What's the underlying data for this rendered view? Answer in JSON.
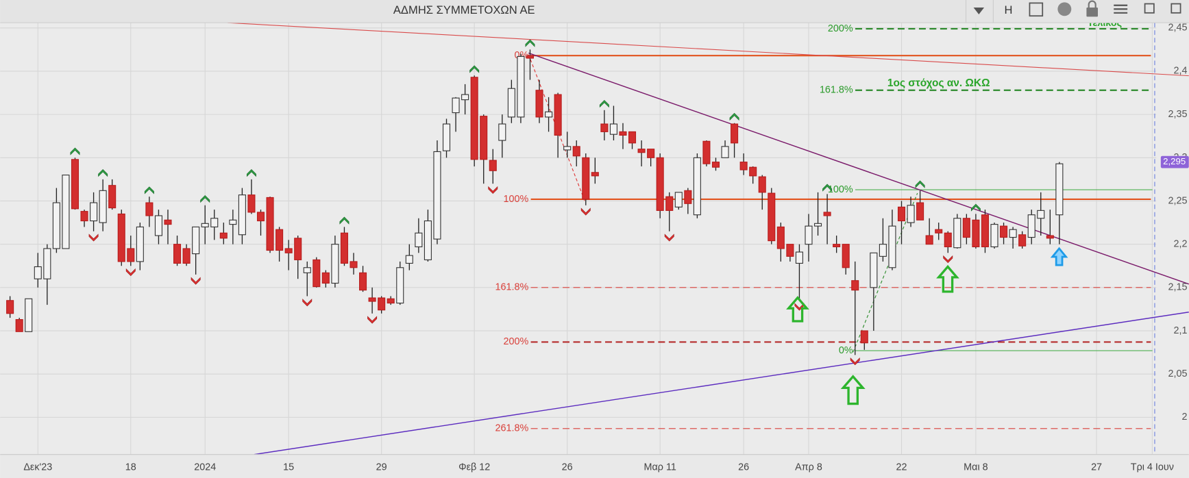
{
  "chart_data": {
    "type": "candlestick",
    "title": "ΑΔΜΗΣ ΣΥΜΜΕΤΟΧΩΝ ΑΕ",
    "toolbar_button": "H",
    "categories": [
      null,
      null,
      null,
      "Δεκ'23",
      null,
      null,
      null,
      null,
      null,
      null,
      null,
      null,
      null,
      "18",
      null,
      null,
      null,
      null,
      null,
      null,
      null,
      "2024",
      null,
      null,
      null,
      null,
      null,
      null,
      null,
      null,
      "15",
      null,
      null,
      null,
      null,
      null,
      null,
      null,
      null,
      null,
      "29",
      null,
      null,
      null,
      null,
      null,
      null,
      null,
      null,
      null,
      "Φεβ 12",
      null,
      null,
      null,
      null,
      null,
      null,
      null,
      null,
      null,
      "26",
      null,
      null,
      null,
      null,
      null,
      null,
      null,
      null,
      null,
      "Μαρ 11",
      null,
      null,
      null,
      null,
      null,
      null,
      null,
      null,
      "26",
      null,
      null,
      null,
      null,
      null,
      null,
      "Απρ 8",
      null,
      null,
      null,
      null,
      null,
      null,
      null,
      null,
      null,
      "22",
      null,
      null,
      null,
      null,
      null,
      null,
      null,
      "Μαι 8",
      null,
      null,
      null,
      null,
      null,
      null,
      null,
      null,
      null,
      null,
      null,
      null,
      "27",
      null,
      null,
      null,
      null,
      null,
      "Τρι 4 Ιουν"
    ],
    "open": [
      2.135,
      2.113,
      2.099,
      2.16,
      2.16,
      2.195,
      2.195,
      2.298,
      2.238,
      2.227,
      2.225,
      2.268,
      2.235,
      2.195,
      2.18,
      2.248,
      2.21,
      2.228,
      2.2,
      2.195,
      2.189,
      2.22,
      2.22,
      2.213,
      2.223,
      2.211,
      2.257,
      2.237,
      2.254,
      2.217,
      2.195,
      2.207,
      2.167,
      2.182,
      2.167,
      2.155,
      2.213,
      2.18,
      2.167,
      2.138,
      2.138,
      2.137,
      2.132,
      2.178,
      2.197,
      2.182,
      2.206,
      2.308,
      2.352,
      2.367,
      2.393,
      2.348,
      2.297,
      2.32,
      2.347,
      2.347,
      2.418,
      2.378,
      2.347,
      2.373,
      2.309,
      2.313,
      2.3,
      2.283,
      2.339,
      2.327,
      2.33,
      2.33,
      2.31,
      2.31,
      2.3,
      2.255,
      2.243,
      2.262,
      2.234,
      2.319,
      2.295,
      2.3,
      2.339,
      2.295,
      2.289,
      2.278,
      2.259,
      2.22,
      2.2,
      2.178,
      2.2,
      2.221,
      2.237,
      2.2,
      2.2,
      2.158,
      2.1,
      2.15,
      2.186,
      2.173,
      2.243,
      2.225,
      2.248,
      2.21,
      2.217,
      2.213,
      2.196,
      2.23,
      2.228,
      2.234,
      2.197,
      2.221,
      2.208,
      2.211,
      2.208,
      2.23,
      2.21,
      2.234,
      null,
      null,
      null,
      null,
      null,
      null,
      null,
      null,
      null,
      null
    ],
    "high": [
      2.14,
      2.115,
      2.137,
      2.19,
      2.2,
      2.265,
      2.28,
      2.3,
      2.24,
      2.26,
      2.275,
      2.275,
      2.24,
      2.21,
      2.225,
      2.255,
      2.24,
      2.24,
      2.21,
      2.2,
      2.22,
      2.245,
      2.24,
      2.225,
      2.24,
      2.265,
      2.275,
      2.24,
      2.255,
      2.22,
      2.205,
      2.21,
      2.18,
      2.185,
      2.17,
      2.21,
      2.22,
      2.19,
      2.175,
      2.15,
      2.14,
      2.14,
      2.18,
      2.2,
      2.23,
      2.24,
      2.32,
      2.345,
      2.37,
      2.385,
      2.395,
      2.35,
      2.31,
      2.35,
      2.39,
      2.42,
      2.425,
      2.39,
      2.37,
      2.375,
      2.33,
      2.32,
      2.305,
      2.3,
      2.355,
      2.36,
      2.34,
      2.33,
      2.32,
      2.31,
      2.305,
      2.26,
      2.26,
      2.265,
      2.305,
      2.32,
      2.3,
      2.32,
      2.34,
      2.305,
      2.29,
      2.28,
      2.265,
      2.225,
      2.2,
      2.2,
      2.235,
      2.26,
      2.258,
      2.21,
      2.2,
      2.18,
      2.1,
      2.19,
      2.23,
      2.24,
      2.25,
      2.255,
      2.262,
      2.23,
      2.225,
      2.215,
      2.235,
      2.235,
      2.235,
      2.24,
      2.225,
      2.225,
      2.22,
      2.215,
      2.24,
      2.26,
      2.24,
      2.295,
      null,
      null,
      null,
      null,
      null,
      null,
      null,
      null,
      null,
      null
    ],
    "low": [
      2.115,
      2.099,
      2.099,
      2.15,
      2.13,
      2.19,
      2.195,
      2.24,
      2.22,
      2.215,
      2.215,
      2.24,
      2.175,
      2.175,
      2.17,
      2.22,
      2.2,
      2.2,
      2.175,
      2.175,
      2.165,
      2.2,
      2.205,
      2.2,
      2.2,
      2.2,
      2.235,
      2.21,
      2.19,
      2.18,
      2.17,
      2.16,
      2.14,
      2.15,
      2.15,
      2.15,
      2.175,
      2.165,
      2.145,
      2.12,
      2.12,
      2.13,
      2.13,
      2.17,
      2.19,
      2.18,
      2.2,
      2.3,
      2.33,
      2.35,
      2.29,
      2.27,
      2.27,
      2.3,
      2.34,
      2.34,
      2.39,
      2.34,
      2.33,
      2.3,
      2.3,
      2.29,
      2.245,
      2.27,
      2.32,
      2.32,
      2.31,
      2.31,
      2.29,
      2.29,
      2.23,
      2.215,
      2.24,
      2.235,
      2.23,
      2.29,
      2.285,
      2.3,
      2.3,
      2.28,
      2.27,
      2.24,
      2.2,
      2.18,
      2.18,
      2.135,
      2.18,
      2.21,
      2.2,
      2.19,
      2.165,
      2.072,
      2.078,
      2.1,
      2.18,
      2.17,
      2.2,
      2.22,
      2.228,
      2.2,
      2.205,
      2.19,
      2.195,
      2.2,
      2.195,
      2.19,
      2.195,
      2.2,
      2.195,
      2.195,
      2.2,
      2.21,
      2.2,
      2.2,
      null,
      null,
      null,
      null,
      null,
      null,
      null,
      null,
      null,
      null
    ],
    "close": [
      2.12,
      2.099,
      2.137,
      2.174,
      2.195,
      2.248,
      2.28,
      2.241,
      2.227,
      2.248,
      2.262,
      2.242,
      2.18,
      2.18,
      2.22,
      2.233,
      2.233,
      2.223,
      2.178,
      2.178,
      2.22,
      2.224,
      2.23,
      2.207,
      2.228,
      2.257,
      2.237,
      2.227,
      2.193,
      2.193,
      2.19,
      2.182,
      2.173,
      2.151,
      2.155,
      2.2,
      2.178,
      2.173,
      2.147,
      2.134,
      2.124,
      2.132,
      2.173,
      2.187,
      2.213,
      2.227,
      2.307,
      2.339,
      2.369,
      2.373,
      2.298,
      2.298,
      2.285,
      2.339,
      2.38,
      2.417,
      2.415,
      2.347,
      2.353,
      2.326,
      2.313,
      2.302,
      2.252,
      2.279,
      2.33,
      2.339,
      2.326,
      2.317,
      2.306,
      2.3,
      2.239,
      2.239,
      2.26,
      2.247,
      2.3,
      2.293,
      2.289,
      2.313,
      2.317,
      2.286,
      2.279,
      2.26,
      2.204,
      2.195,
      2.186,
      2.191,
      2.221,
      2.224,
      2.233,
      2.197,
      2.173,
      2.147,
      2.086,
      2.19,
      2.2,
      2.221,
      2.227,
      2.245,
      2.228,
      2.2,
      2.213,
      2.197,
      2.23,
      2.208,
      2.197,
      2.197,
      2.223,
      2.208,
      2.217,
      2.198,
      2.234,
      2.239,
      2.207,
      2.293,
      null,
      null,
      null,
      null,
      null,
      null,
      null,
      null,
      null,
      null
    ],
    "up_color": "#f3f3f3",
    "down_color": "#d32f2f",
    "ylim": [
      1.957,
      2.456
    ],
    "yticks": [
      2,
      {
        "value": 2.05,
        "label": "2,05"
      },
      {
        "value": 2.1,
        "label": "2,1"
      },
      {
        "value": 2.15,
        "label": "2,15"
      },
      {
        "value": 2.2,
        "label": "2,2"
      },
      {
        "value": 2.25,
        "label": "2,25"
      },
      {
        "value": 2.3,
        "label": "2,3"
      },
      {
        "value": 2.35,
        "label": "2,35"
      },
      {
        "value": 2.4,
        "label": "2,4"
      },
      {
        "value": 2.45,
        "label": "2,45"
      }
    ],
    "grid": true,
    "last_price": {
      "value": 2.295,
      "label": "2,295"
    },
    "fractals_up": [
      7,
      10,
      15,
      21,
      26,
      36,
      50,
      56,
      64,
      78,
      88,
      98,
      104
    ],
    "fractals_down": [
      9,
      13,
      20,
      32,
      39,
      52,
      62,
      71,
      85,
      91,
      101
    ],
    "fibonacci_red": [
      {
        "label": "0%",
        "value": 2.418,
        "style": "solid"
      },
      {
        "label": "100%",
        "value": 2.252,
        "style": "solid"
      },
      {
        "label": "161.8%",
        "value": 2.15,
        "style": "dashed"
      },
      {
        "label": "200%",
        "value": 2.087,
        "style": "bold-dashed"
      },
      {
        "label": "261.8%",
        "value": 1.987,
        "style": "dashed"
      }
    ],
    "fibonacci_green": [
      {
        "label": "200%",
        "value": 2.449,
        "style": "bold-dashed"
      },
      {
        "label": "161.8%",
        "value": 2.378,
        "style": "bold-dashed"
      },
      {
        "label": "100%",
        "value": 2.263,
        "style": "solid"
      },
      {
        "label": "0%",
        "value": 2.077,
        "style": "solid"
      }
    ],
    "annotations": [
      "1ος στόχος αν. ΩΚΩ",
      "Τελικός"
    ]
  }
}
